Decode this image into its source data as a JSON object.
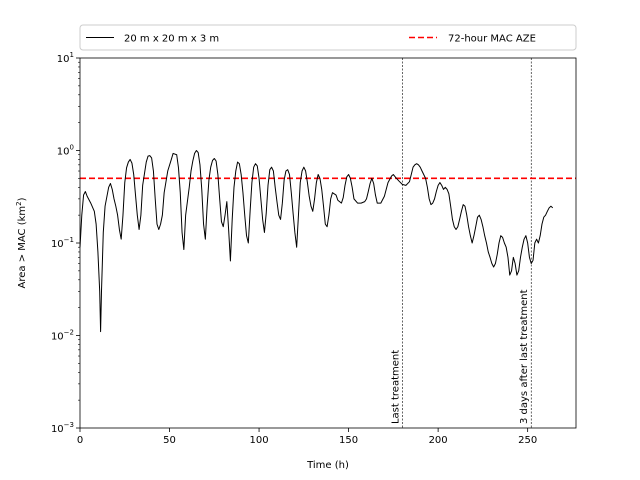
{
  "chart_data": {
    "type": "line",
    "title": "",
    "xlabel": "Time (h)",
    "ylabel_main": "Area > MAC (km",
    "ylabel_sup": "2",
    "ylabel_close": ")",
    "xlim": [
      0,
      277
    ],
    "ylim": [
      0.001,
      10
    ],
    "yscale": "log",
    "grid": false,
    "legend_position": "top",
    "x_ticks": [
      0,
      50,
      100,
      150,
      200,
      250
    ],
    "x_tick_labels": [
      "0",
      "50",
      "100",
      "150",
      "200",
      "250"
    ],
    "y_ticks": [
      0.001,
      0.01,
      0.1,
      1,
      10
    ],
    "y_tick_labels": [
      {
        "base": "10",
        "exp": "−3"
      },
      {
        "base": "10",
        "exp": "−2"
      },
      {
        "base": "10",
        "exp": "−1"
      },
      {
        "base": "10",
        "exp": "0"
      },
      {
        "base": "10",
        "exp": "1"
      }
    ],
    "series": [
      {
        "name": "20 m x 20 m x 3 m",
        "color": "#000000",
        "style": "solid",
        "points": [
          [
            0,
            0.09
          ],
          [
            1,
            0.2
          ],
          [
            2,
            0.33
          ],
          [
            3,
            0.36
          ],
          [
            4,
            0.32
          ],
          [
            6,
            0.27
          ],
          [
            8,
            0.22
          ],
          [
            9,
            0.16
          ],
          [
            10,
            0.08
          ],
          [
            11,
            0.03
          ],
          [
            11.5,
            0.011
          ],
          [
            12,
            0.03
          ],
          [
            13,
            0.13
          ],
          [
            14,
            0.25
          ],
          [
            16,
            0.4
          ],
          [
            17,
            0.44
          ],
          [
            18,
            0.38
          ],
          [
            19,
            0.3
          ],
          [
            20,
            0.25
          ],
          [
            21,
            0.2
          ],
          [
            22,
            0.14
          ],
          [
            23,
            0.11
          ],
          [
            24,
            0.2
          ],
          [
            25,
            0.45
          ],
          [
            26,
            0.65
          ],
          [
            27,
            0.75
          ],
          [
            28,
            0.8
          ],
          [
            29,
            0.73
          ],
          [
            30,
            0.55
          ],
          [
            31,
            0.33
          ],
          [
            32,
            0.2
          ],
          [
            33,
            0.14
          ],
          [
            34,
            0.2
          ],
          [
            35,
            0.42
          ],
          [
            37,
            0.75
          ],
          [
            38,
            0.87
          ],
          [
            39,
            0.88
          ],
          [
            40,
            0.83
          ],
          [
            41,
            0.6
          ],
          [
            42,
            0.3
          ],
          [
            43,
            0.16
          ],
          [
            44,
            0.14
          ],
          [
            45,
            0.16
          ],
          [
            46,
            0.2
          ],
          [
            47,
            0.35
          ],
          [
            49,
            0.6
          ],
          [
            51,
            0.8
          ],
          [
            52,
            0.93
          ],
          [
            54,
            0.9
          ],
          [
            55,
            0.65
          ],
          [
            56,
            0.35
          ],
          [
            57,
            0.13
          ],
          [
            58,
            0.085
          ],
          [
            59,
            0.2
          ],
          [
            61,
            0.4
          ],
          [
            62,
            0.6
          ],
          [
            63,
            0.77
          ],
          [
            64,
            0.93
          ],
          [
            65,
            1.0
          ],
          [
            66,
            0.95
          ],
          [
            67,
            0.7
          ],
          [
            68,
            0.38
          ],
          [
            69,
            0.16
          ],
          [
            70,
            0.11
          ],
          [
            71,
            0.25
          ],
          [
            72,
            0.48
          ],
          [
            73,
            0.66
          ],
          [
            74,
            0.78
          ],
          [
            75,
            0.82
          ],
          [
            76,
            0.77
          ],
          [
            77,
            0.55
          ],
          [
            78,
            0.3
          ],
          [
            79,
            0.17
          ],
          [
            80,
            0.15
          ],
          [
            81,
            0.2
          ],
          [
            82,
            0.28
          ],
          [
            83,
            0.14
          ],
          [
            84,
            0.064
          ],
          [
            85,
            0.18
          ],
          [
            86,
            0.4
          ],
          [
            87,
            0.6
          ],
          [
            88,
            0.75
          ],
          [
            89,
            0.72
          ],
          [
            90,
            0.55
          ],
          [
            91,
            0.35
          ],
          [
            92,
            0.2
          ],
          [
            93,
            0.12
          ],
          [
            94,
            0.1
          ],
          [
            95,
            0.22
          ],
          [
            96,
            0.45
          ],
          [
            97,
            0.66
          ],
          [
            98,
            0.72
          ],
          [
            99,
            0.68
          ],
          [
            100,
            0.5
          ],
          [
            101,
            0.3
          ],
          [
            102,
            0.18
          ],
          [
            103,
            0.13
          ],
          [
            104,
            0.21
          ],
          [
            105,
            0.42
          ],
          [
            106,
            0.62
          ],
          [
            107,
            0.66
          ],
          [
            108,
            0.6
          ],
          [
            109,
            0.4
          ],
          [
            110,
            0.28
          ],
          [
            111,
            0.2
          ],
          [
            112,
            0.18
          ],
          [
            113,
            0.27
          ],
          [
            114,
            0.48
          ],
          [
            115,
            0.6
          ],
          [
            116,
            0.62
          ],
          [
            117,
            0.55
          ],
          [
            118,
            0.35
          ],
          [
            119,
            0.21
          ],
          [
            120,
            0.13
          ],
          [
            121,
            0.09
          ],
          [
            122,
            0.2
          ],
          [
            123,
            0.45
          ],
          [
            124,
            0.6
          ],
          [
            125,
            0.66
          ],
          [
            126,
            0.6
          ],
          [
            127,
            0.45
          ],
          [
            128,
            0.32
          ],
          [
            129,
            0.25
          ],
          [
            130,
            0.22
          ],
          [
            131,
            0.3
          ],
          [
            132,
            0.45
          ],
          [
            133,
            0.55
          ],
          [
            134,
            0.5
          ],
          [
            135,
            0.38
          ],
          [
            136,
            0.25
          ],
          [
            137,
            0.16
          ],
          [
            138,
            0.15
          ],
          [
            139,
            0.2
          ],
          [
            140,
            0.3
          ],
          [
            141,
            0.35
          ],
          [
            143,
            0.33
          ],
          [
            144,
            0.29
          ],
          [
            146,
            0.27
          ],
          [
            147,
            0.31
          ],
          [
            148,
            0.42
          ],
          [
            149,
            0.52
          ],
          [
            150,
            0.55
          ],
          [
            151,
            0.5
          ],
          [
            152,
            0.4
          ],
          [
            153,
            0.3
          ],
          [
            155,
            0.27
          ],
          [
            157,
            0.27
          ],
          [
            159,
            0.28
          ],
          [
            160,
            0.3
          ],
          [
            161,
            0.36
          ],
          [
            162,
            0.44
          ],
          [
            163,
            0.5
          ],
          [
            164,
            0.44
          ],
          [
            165,
            0.33
          ],
          [
            166,
            0.27
          ],
          [
            168,
            0.27
          ],
          [
            170,
            0.32
          ],
          [
            172,
            0.45
          ],
          [
            174,
            0.53
          ],
          [
            175,
            0.55
          ],
          [
            176,
            0.52
          ],
          [
            178,
            0.47
          ],
          [
            180,
            0.43
          ],
          [
            182,
            0.42
          ],
          [
            184,
            0.46
          ],
          [
            185,
            0.55
          ],
          [
            186,
            0.66
          ],
          [
            187,
            0.7
          ],
          [
            188,
            0.72
          ],
          [
            189,
            0.7
          ],
          [
            190,
            0.66
          ],
          [
            191,
            0.6
          ],
          [
            193,
            0.5
          ],
          [
            194,
            0.4
          ],
          [
            195,
            0.3
          ],
          [
            196,
            0.26
          ],
          [
            197,
            0.27
          ],
          [
            198,
            0.3
          ],
          [
            199,
            0.36
          ],
          [
            200,
            0.42
          ],
          [
            201,
            0.45
          ],
          [
            202,
            0.42
          ],
          [
            203,
            0.38
          ],
          [
            204,
            0.4
          ],
          [
            205,
            0.38
          ],
          [
            206,
            0.34
          ],
          [
            207,
            0.25
          ],
          [
            208,
            0.18
          ],
          [
            209,
            0.15
          ],
          [
            210,
            0.14
          ],
          [
            211,
            0.15
          ],
          [
            212,
            0.18
          ],
          [
            213,
            0.22
          ],
          [
            214,
            0.26
          ],
          [
            215,
            0.25
          ],
          [
            216,
            0.2
          ],
          [
            217,
            0.15
          ],
          [
            218,
            0.12
          ],
          [
            219,
            0.1
          ],
          [
            220,
            0.12
          ],
          [
            221,
            0.15
          ],
          [
            222,
            0.19
          ],
          [
            223,
            0.2
          ],
          [
            224,
            0.18
          ],
          [
            225,
            0.15
          ],
          [
            226,
            0.12
          ],
          [
            227,
            0.1
          ],
          [
            228,
            0.08
          ],
          [
            229,
            0.07
          ],
          [
            230,
            0.06
          ],
          [
            231,
            0.055
          ],
          [
            232,
            0.06
          ],
          [
            233,
            0.075
          ],
          [
            234,
            0.1
          ],
          [
            235,
            0.12
          ],
          [
            236,
            0.115
          ],
          [
            237,
            0.1
          ],
          [
            238,
            0.09
          ],
          [
            239,
            0.07
          ],
          [
            240,
            0.045
          ],
          [
            241,
            0.05
          ],
          [
            242,
            0.07
          ],
          [
            243,
            0.06
          ],
          [
            244,
            0.045
          ],
          [
            245,
            0.05
          ],
          [
            246,
            0.07
          ],
          [
            247,
            0.09
          ],
          [
            248,
            0.11
          ],
          [
            249,
            0.12
          ],
          [
            250,
            0.1
          ],
          [
            251,
            0.07
          ],
          [
            252,
            0.06
          ],
          [
            253,
            0.065
          ],
          [
            254,
            0.1
          ],
          [
            255,
            0.11
          ],
          [
            256,
            0.1
          ],
          [
            257,
            0.12
          ],
          [
            258,
            0.16
          ],
          [
            259,
            0.19
          ],
          [
            260,
            0.2
          ],
          [
            261,
            0.22
          ],
          [
            262,
            0.24
          ],
          [
            263,
            0.25
          ],
          [
            264,
            0.24
          ]
        ]
      },
      {
        "name": "72-hour MAC AZE",
        "color": "#ff0000",
        "style": "dashed",
        "value": 0.5
      }
    ],
    "annotations": [
      {
        "x": 180,
        "text": "Last treatment"
      },
      {
        "x": 252,
        "text": "3 days after last treatment"
      }
    ]
  }
}
